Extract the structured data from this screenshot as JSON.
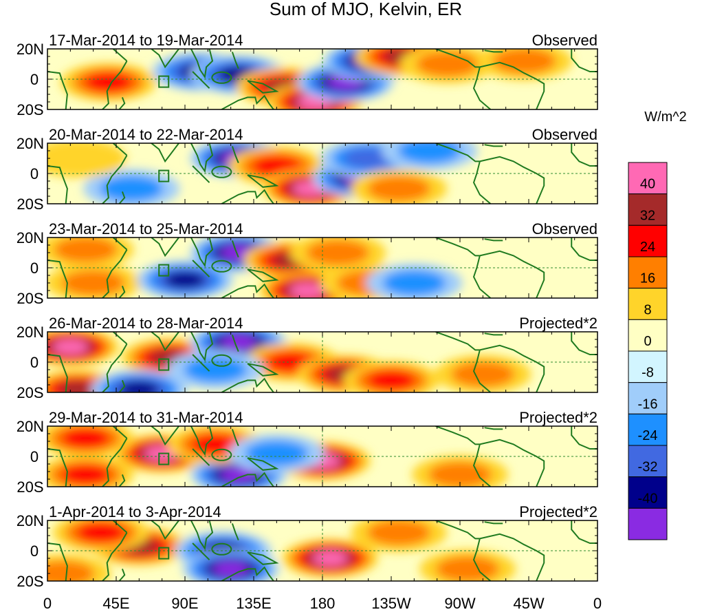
{
  "chart_data": {
    "type": "heatmap",
    "title": "Sum of MJO, Kelvin, ER",
    "colorbar": {
      "label": "W/m^2",
      "ticks": [
        "40",
        "32",
        "24",
        "16",
        "8",
        "0",
        "-8",
        "-16",
        "-24",
        "-32",
        "-40"
      ],
      "colors": [
        "#ff69b4",
        "#a52a2a",
        "#ff0000",
        "#ff7f00",
        "#ffd42a",
        "#ffffc4",
        "#d2f5ff",
        "#a0cdfa",
        "#1e90ff",
        "#4169e1",
        "#00008b",
        "#8a2be2"
      ]
    },
    "x_axis": {
      "ticks": [
        "0",
        "45E",
        "90E",
        "135E",
        "180",
        "135W",
        "90W",
        "45W",
        "0"
      ],
      "range_deg": [
        0,
        360
      ]
    },
    "y_axis": {
      "ticks": [
        "20N",
        "0",
        "20S"
      ],
      "range_deg": [
        -20,
        20
      ]
    },
    "panels": [
      {
        "date_range": "17-Mar-2014 to 19-Mar-2014",
        "label": "Observed",
        "anomalies": [
          {
            "lon": 40,
            "lat": -2,
            "value": 24
          },
          {
            "lon": 100,
            "lat": 5,
            "value": -32
          },
          {
            "lon": 125,
            "lat": 3,
            "value": -32
          },
          {
            "lon": 155,
            "lat": -5,
            "value": 32
          },
          {
            "lon": 175,
            "lat": -15,
            "value": 40
          },
          {
            "lon": 195,
            "lat": -2,
            "value": -40
          },
          {
            "lon": 212,
            "lat": 12,
            "value": -40
          },
          {
            "lon": 233,
            "lat": 15,
            "value": 32
          },
          {
            "lon": 262,
            "lat": 10,
            "value": 16
          },
          {
            "lon": 312,
            "lat": 12,
            "value": 16
          }
        ]
      },
      {
        "date_range": "20-Mar-2014 to 22-Mar-2014",
        "label": "Observed",
        "anomalies": [
          {
            "lon": 125,
            "lat": 10,
            "value": -40
          },
          {
            "lon": 150,
            "lat": 5,
            "value": 24
          },
          {
            "lon": 172,
            "lat": -10,
            "value": 40
          },
          {
            "lon": 205,
            "lat": -3,
            "value": -40
          },
          {
            "lon": 210,
            "lat": 10,
            "value": -24
          },
          {
            "lon": 230,
            "lat": -10,
            "value": 16
          },
          {
            "lon": 55,
            "lat": -10,
            "value": -16
          },
          {
            "lon": 250,
            "lat": 15,
            "value": -16
          },
          {
            "lon": 20,
            "lat": 10,
            "value": 8
          }
        ]
      },
      {
        "date_range": "23-Mar-2014 to 25-Mar-2014",
        "label": "Observed",
        "anomalies": [
          {
            "lon": 125,
            "lat": 10,
            "value": -40
          },
          {
            "lon": 160,
            "lat": 5,
            "value": 32
          },
          {
            "lon": 170,
            "lat": -15,
            "value": 40
          },
          {
            "lon": 25,
            "lat": 12,
            "value": 16
          },
          {
            "lon": 30,
            "lat": -10,
            "value": 16
          },
          {
            "lon": 90,
            "lat": -8,
            "value": -32
          },
          {
            "lon": 190,
            "lat": 10,
            "value": 16
          },
          {
            "lon": 210,
            "lat": -10,
            "value": 16
          },
          {
            "lon": 240,
            "lat": -10,
            "value": -16
          }
        ]
      },
      {
        "date_range": "26-Mar-2014 to 28-Mar-2014",
        "label": "Projected*2",
        "anomalies": [
          {
            "lon": 15,
            "lat": 10,
            "value": 40
          },
          {
            "lon": 80,
            "lat": 3,
            "value": 32
          },
          {
            "lon": 125,
            "lat": 13,
            "value": -40
          },
          {
            "lon": 20,
            "lat": -18,
            "value": 32
          },
          {
            "lon": 60,
            "lat": -18,
            "value": -32
          },
          {
            "lon": 160,
            "lat": 0,
            "value": 24
          },
          {
            "lon": 195,
            "lat": -8,
            "value": 32
          },
          {
            "lon": 225,
            "lat": -12,
            "value": 24
          },
          {
            "lon": 285,
            "lat": -8,
            "value": 16
          },
          {
            "lon": 110,
            "lat": -5,
            "value": -16
          }
        ]
      },
      {
        "date_range": "29-Mar-2014 to 31-Mar-2014",
        "label": "Projected*2",
        "anomalies": [
          {
            "lon": 75,
            "lat": 2,
            "value": 40
          },
          {
            "lon": 25,
            "lat": 12,
            "value": 24
          },
          {
            "lon": 25,
            "lat": -12,
            "value": 24
          },
          {
            "lon": 125,
            "lat": -12,
            "value": -40
          },
          {
            "lon": 180,
            "lat": -3,
            "value": 40
          },
          {
            "lon": 110,
            "lat": 8,
            "value": 24
          },
          {
            "lon": 270,
            "lat": -12,
            "value": 16
          },
          {
            "lon": 150,
            "lat": 2,
            "value": -16
          }
        ]
      },
      {
        "date_range": "1-Apr-2014 to 3-Apr-2014",
        "label": "Projected*2",
        "anomalies": [
          {
            "lon": 60,
            "lat": 3,
            "value": 32
          },
          {
            "lon": 35,
            "lat": 12,
            "value": 24
          },
          {
            "lon": 115,
            "lat": 0,
            "value": -32
          },
          {
            "lon": 120,
            "lat": -12,
            "value": -40
          },
          {
            "lon": 185,
            "lat": -5,
            "value": 40
          },
          {
            "lon": 275,
            "lat": -12,
            "value": 16
          },
          {
            "lon": 230,
            "lat": 12,
            "value": 16
          },
          {
            "lon": 10,
            "lat": -15,
            "value": 16
          }
        ]
      }
    ]
  }
}
